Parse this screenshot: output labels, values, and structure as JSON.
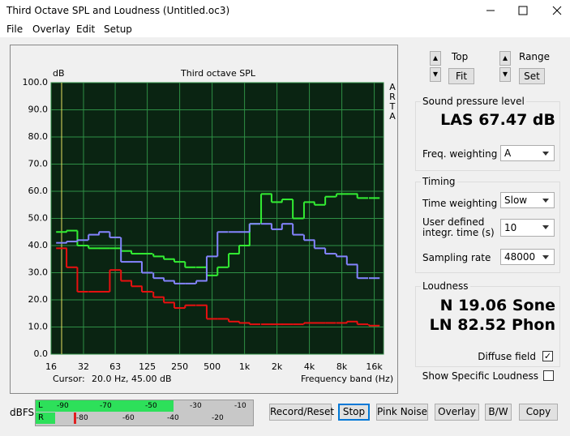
{
  "window": {
    "title": "Third Octave SPL and Loudness (Untitled.oc3)"
  },
  "menu": [
    "File",
    "Overlay",
    "Edit",
    "Setup"
  ],
  "chart_data": {
    "type": "step",
    "title": "Third octave SPL",
    "y_unit": "dB",
    "brand": [
      "A",
      "R",
      "T",
      "A"
    ],
    "x_label": "Frequency band (Hz)",
    "cursor_label": "Cursor:",
    "cursor_value": "20.0 Hz, 45.00 dB",
    "log_x": true,
    "grid": true,
    "x": [
      20,
      25,
      31.5,
      40,
      50,
      63,
      80,
      100,
      125,
      160,
      200,
      250,
      315,
      400,
      500,
      630,
      800,
      1000,
      1250,
      1600,
      2000,
      2500,
      3150,
      4000,
      5000,
      6300,
      8000,
      10000,
      12500,
      16000
    ],
    "series": [
      {
        "color": "#33ee33",
        "values": [
          45,
          45.5,
          40,
          39,
          39,
          39,
          38,
          37,
          37,
          36,
          35,
          34,
          32,
          32,
          29,
          32,
          37,
          40,
          48,
          59,
          56,
          57,
          50,
          56,
          55,
          58,
          59,
          59,
          57.5,
          57.5
        ]
      },
      {
        "color": "#8484ff",
        "values": [
          41,
          41.5,
          42,
          44,
          45,
          43,
          34,
          34,
          30,
          28,
          27,
          26,
          26,
          27,
          36,
          45,
          45,
          45,
          48,
          48,
          46,
          48,
          44,
          42,
          39,
          37,
          36,
          33,
          28,
          28
        ]
      },
      {
        "color": "#e81010",
        "values": [
          39,
          32,
          23,
          23,
          23,
          31,
          27,
          25,
          23,
          21,
          19,
          17,
          18,
          18,
          13,
          13,
          12,
          11.5,
          11,
          11,
          11,
          11,
          11,
          11.5,
          11.5,
          11.5,
          11.5,
          12,
          11,
          10.5
        ]
      }
    ],
    "xlim": [
      16,
      19500
    ],
    "xticks": [
      16,
      32,
      63,
      125,
      250,
      500,
      {
        "value": 1000,
        "label": "1k"
      },
      {
        "value": 2000,
        "label": "2k"
      },
      {
        "value": 4000,
        "label": "4k"
      },
      {
        "value": 8000,
        "label": "8k"
      },
      {
        "value": 16000,
        "label": "16k"
      }
    ],
    "ylim": [
      0,
      100
    ],
    "yticks": [
      {
        "value": 0,
        "label": "0.0"
      },
      {
        "value": 10,
        "label": "10.0"
      },
      {
        "value": 20,
        "label": "20.0"
      },
      {
        "value": 30,
        "label": "30.0"
      },
      {
        "value": 40,
        "label": "40.0"
      },
      {
        "value": 50,
        "label": "50.0"
      },
      {
        "value": 60,
        "label": "60.0"
      },
      {
        "value": 70,
        "label": "70.0"
      },
      {
        "value": 80,
        "label": "80.0"
      },
      {
        "value": 90,
        "label": "90.0"
      },
      {
        "value": 100,
        "label": "100.0"
      }
    ]
  },
  "controls": {
    "top_label": "Top",
    "fit_button": "Fit",
    "range_label": "Range",
    "set_button": "Set"
  },
  "spl": {
    "group": "Sound pressure level",
    "reading": "LAS 67.47 dB",
    "weighting_label": "Freq. weighting",
    "weighting": "A"
  },
  "timing": {
    "group": "Timing",
    "time_weighting_label": "Time weighting",
    "time_weighting": "Slow",
    "integr_label_1": "User defined",
    "integr_label_2": "integr. time (s)",
    "integr_time": "10",
    "sampling_label": "Sampling rate",
    "sampling_rate": "48000"
  },
  "loudness": {
    "group": "Loudness",
    "sone": "N 19.06 Sone",
    "phon": "LN 82.52 Phon",
    "diffuse": "Diffuse field",
    "specific": "Show Specific Loudness"
  },
  "meter": {
    "label": "dBFS",
    "left": "L",
    "right": "R",
    "left_scale": [
      "-90",
      "-70",
      "-50",
      "-30",
      "-10"
    ],
    "right_scale": [
      "-80",
      "-60",
      "-40",
      "-20"
    ]
  },
  "buttons": [
    "Record/Reset",
    "Stop",
    "Pink Noise",
    "Overlay",
    "B/W",
    "Copy"
  ]
}
